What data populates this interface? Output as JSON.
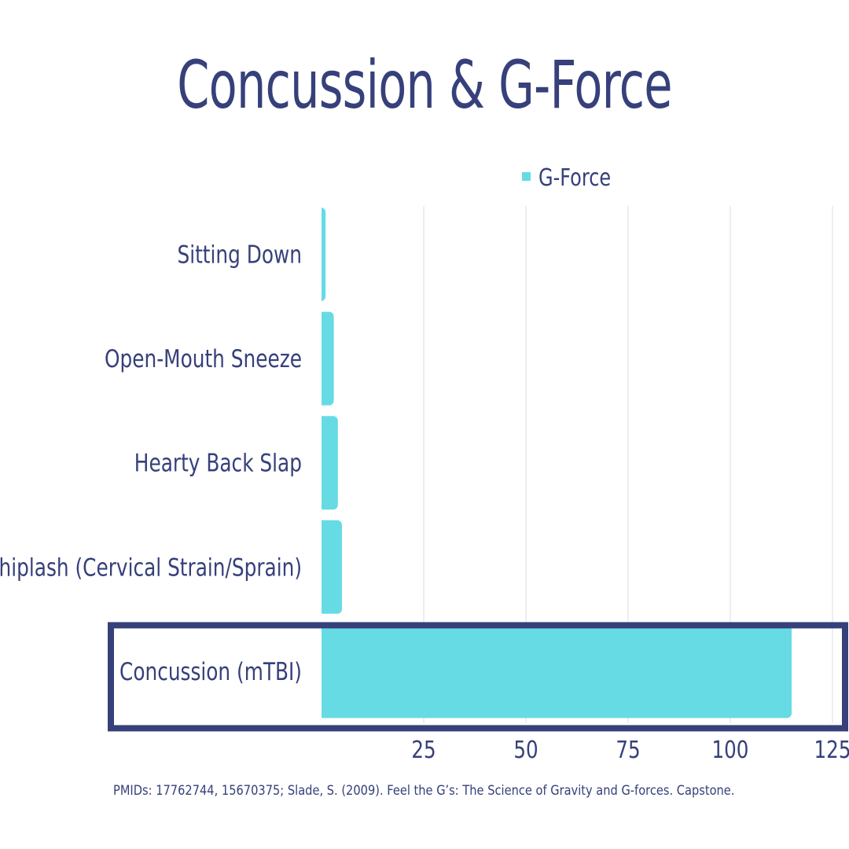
{
  "title": "Concussion & G-Force",
  "source": "PMIDs: 17762744, 15670375; Slade, S. (2009). Feel the G’s: The Science of Gravity and G-forces. Capstone.",
  "colors": {
    "bar": "#66dbe4",
    "text": "#36407a",
    "highlight_border": "#36407a",
    "grid": "#dcdde3"
  },
  "chart_data": {
    "type": "bar",
    "orientation": "horizontal",
    "categories": [
      "Sitting Down",
      "Open-Mouth Sneeze",
      "Hearty Back Slap",
      "Whiplash (Cervical Strain/Sprain)",
      "Concussion (mTBI)"
    ],
    "series": [
      {
        "name": "G-Force",
        "values": [
          1,
          3,
          4,
          5,
          115
        ]
      }
    ],
    "xticks": [
      25,
      50,
      75,
      100,
      125
    ],
    "xlim": [
      0,
      125
    ],
    "legend": "top",
    "grid": true,
    "highlighted_category": "Concussion (mTBI)"
  }
}
